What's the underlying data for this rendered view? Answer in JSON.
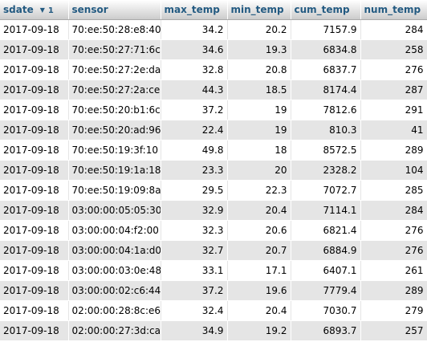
{
  "columns": {
    "sdate": "sdate",
    "sdate_sort_icon": "sort-descending-icon",
    "sdate_sort_order": "1",
    "sensor": "sensor",
    "max_temp": "max_temp",
    "min_temp": "min_temp",
    "cum_temp": "cum_temp",
    "num_temp": "num_temp"
  },
  "rows": [
    {
      "sdate": "2017-09-18",
      "sensor": "70:ee:50:28:e8:40",
      "max_temp": "34.2",
      "min_temp": "20.2",
      "cum_temp": "7157.9",
      "num_temp": "284"
    },
    {
      "sdate": "2017-09-18",
      "sensor": "70:ee:50:27:71:6c",
      "max_temp": "34.6",
      "min_temp": "19.3",
      "cum_temp": "6834.8",
      "num_temp": "258"
    },
    {
      "sdate": "2017-09-18",
      "sensor": "70:ee:50:27:2e:da",
      "max_temp": "32.8",
      "min_temp": "20.8",
      "cum_temp": "6837.7",
      "num_temp": "276"
    },
    {
      "sdate": "2017-09-18",
      "sensor": "70:ee:50:27:2a:ce",
      "max_temp": "44.3",
      "min_temp": "18.5",
      "cum_temp": "8174.4",
      "num_temp": "287"
    },
    {
      "sdate": "2017-09-18",
      "sensor": "70:ee:50:20:b1:6c",
      "max_temp": "37.2",
      "min_temp": "19",
      "cum_temp": "7812.6",
      "num_temp": "291"
    },
    {
      "sdate": "2017-09-18",
      "sensor": "70:ee:50:20:ad:96",
      "max_temp": "22.4",
      "min_temp": "19",
      "cum_temp": "810.3",
      "num_temp": "41"
    },
    {
      "sdate": "2017-09-18",
      "sensor": "70:ee:50:19:3f:10",
      "max_temp": "49.8",
      "min_temp": "18",
      "cum_temp": "8572.5",
      "num_temp": "289"
    },
    {
      "sdate": "2017-09-18",
      "sensor": "70:ee:50:19:1a:18",
      "max_temp": "23.3",
      "min_temp": "20",
      "cum_temp": "2328.2",
      "num_temp": "104"
    },
    {
      "sdate": "2017-09-18",
      "sensor": "70:ee:50:19:09:8a",
      "max_temp": "29.5",
      "min_temp": "22.3",
      "cum_temp": "7072.7",
      "num_temp": "285"
    },
    {
      "sdate": "2017-09-18",
      "sensor": "03:00:00:05:05:30",
      "max_temp": "32.9",
      "min_temp": "20.4",
      "cum_temp": "7114.1",
      "num_temp": "284"
    },
    {
      "sdate": "2017-09-18",
      "sensor": "03:00:00:04:f2:00",
      "max_temp": "32.3",
      "min_temp": "20.6",
      "cum_temp": "6821.4",
      "num_temp": "276"
    },
    {
      "sdate": "2017-09-18",
      "sensor": "03:00:00:04:1a:d0",
      "max_temp": "32.7",
      "min_temp": "20.7",
      "cum_temp": "6884.9",
      "num_temp": "276"
    },
    {
      "sdate": "2017-09-18",
      "sensor": "03:00:00:03:0e:48",
      "max_temp": "33.1",
      "min_temp": "17.1",
      "cum_temp": "6407.1",
      "num_temp": "261"
    },
    {
      "sdate": "2017-09-18",
      "sensor": "03:00:00:02:c6:44",
      "max_temp": "37.2",
      "min_temp": "19.6",
      "cum_temp": "7779.4",
      "num_temp": "289"
    },
    {
      "sdate": "2017-09-18",
      "sensor": "02:00:00:28:8c:e6",
      "max_temp": "32.4",
      "min_temp": "20.4",
      "cum_temp": "7030.7",
      "num_temp": "279"
    },
    {
      "sdate": "2017-09-18",
      "sensor": "02:00:00:27:3d:ca",
      "max_temp": "34.9",
      "min_temp": "19.2",
      "cum_temp": "6893.7",
      "num_temp": "257"
    }
  ]
}
